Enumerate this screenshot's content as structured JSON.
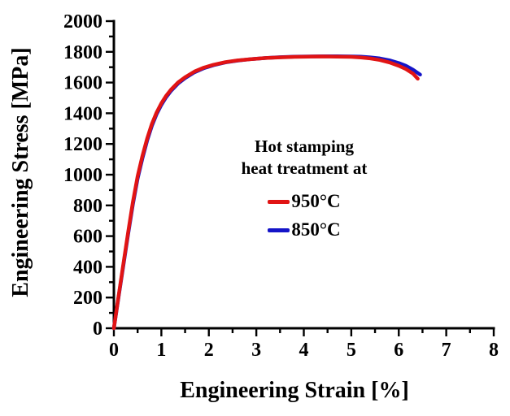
{
  "figure": {
    "background": "#ffffff",
    "axis_color": "#000000",
    "text_color": "#000000"
  },
  "chart_data": {
    "type": "line",
    "title": "",
    "xlabel": "Engineering Strain [%]",
    "ylabel": "Engineering Stress [MPa]",
    "xlim": [
      0,
      8
    ],
    "ylim": [
      0,
      2000
    ],
    "x_ticks": [
      0,
      1,
      2,
      3,
      4,
      5,
      6,
      7,
      8
    ],
    "x_minor_step": 0.5,
    "y_ticks": [
      0,
      200,
      400,
      600,
      800,
      1000,
      1200,
      1400,
      1600,
      1800,
      2000
    ],
    "y_minor_step": 100,
    "grid": false,
    "legend": {
      "position": "center-of-plot",
      "title_lines": [
        "Hot stamping",
        "heat treatment at"
      ],
      "entries": [
        {
          "label": "950°C",
          "color": "#e11414"
        },
        {
          "label": "850°C",
          "color": "#1414c8"
        }
      ]
    },
    "series": [
      {
        "name": "950°C",
        "color": "#e11414",
        "points": [
          [
            0,
            0
          ],
          [
            0.1,
            210
          ],
          [
            0.2,
            420
          ],
          [
            0.3,
            625
          ],
          [
            0.4,
            820
          ],
          [
            0.5,
            990
          ],
          [
            0.6,
            1120
          ],
          [
            0.7,
            1235
          ],
          [
            0.8,
            1330
          ],
          [
            0.9,
            1405
          ],
          [
            1.0,
            1465
          ],
          [
            1.1,
            1513
          ],
          [
            1.2,
            1553
          ],
          [
            1.35,
            1600
          ],
          [
            1.5,
            1635
          ],
          [
            1.7,
            1672
          ],
          [
            1.9,
            1698
          ],
          [
            2.1,
            1716
          ],
          [
            2.35,
            1733
          ],
          [
            2.6,
            1744
          ],
          [
            2.9,
            1753
          ],
          [
            3.2,
            1760
          ],
          [
            3.5,
            1764
          ],
          [
            3.8,
            1767
          ],
          [
            4.1,
            1769
          ],
          [
            4.4,
            1770
          ],
          [
            4.7,
            1769
          ],
          [
            5.0,
            1767
          ],
          [
            5.2,
            1763
          ],
          [
            5.4,
            1757
          ],
          [
            5.6,
            1747
          ],
          [
            5.8,
            1731
          ],
          [
            6.0,
            1709
          ],
          [
            6.15,
            1688
          ],
          [
            6.3,
            1658
          ],
          [
            6.4,
            1625
          ]
        ]
      },
      {
        "name": "850°C",
        "color": "#1414c8",
        "points": [
          [
            0,
            0
          ],
          [
            0.1,
            205
          ],
          [
            0.2,
            410
          ],
          [
            0.3,
            612
          ],
          [
            0.4,
            805
          ],
          [
            0.5,
            975
          ],
          [
            0.6,
            1105
          ],
          [
            0.7,
            1222
          ],
          [
            0.8,
            1318
          ],
          [
            0.9,
            1394
          ],
          [
            1.0,
            1455
          ],
          [
            1.1,
            1504
          ],
          [
            1.2,
            1545
          ],
          [
            1.35,
            1593
          ],
          [
            1.5,
            1629
          ],
          [
            1.7,
            1667
          ],
          [
            1.9,
            1694
          ],
          [
            2.1,
            1713
          ],
          [
            2.35,
            1731
          ],
          [
            2.6,
            1743
          ],
          [
            2.9,
            1753
          ],
          [
            3.2,
            1760
          ],
          [
            3.5,
            1765
          ],
          [
            3.8,
            1768
          ],
          [
            4.1,
            1770
          ],
          [
            4.4,
            1771
          ],
          [
            4.7,
            1771
          ],
          [
            5.0,
            1770
          ],
          [
            5.2,
            1768
          ],
          [
            5.4,
            1764
          ],
          [
            5.6,
            1757
          ],
          [
            5.8,
            1745
          ],
          [
            6.0,
            1727
          ],
          [
            6.15,
            1709
          ],
          [
            6.3,
            1683
          ],
          [
            6.45,
            1652
          ]
        ]
      }
    ]
  }
}
